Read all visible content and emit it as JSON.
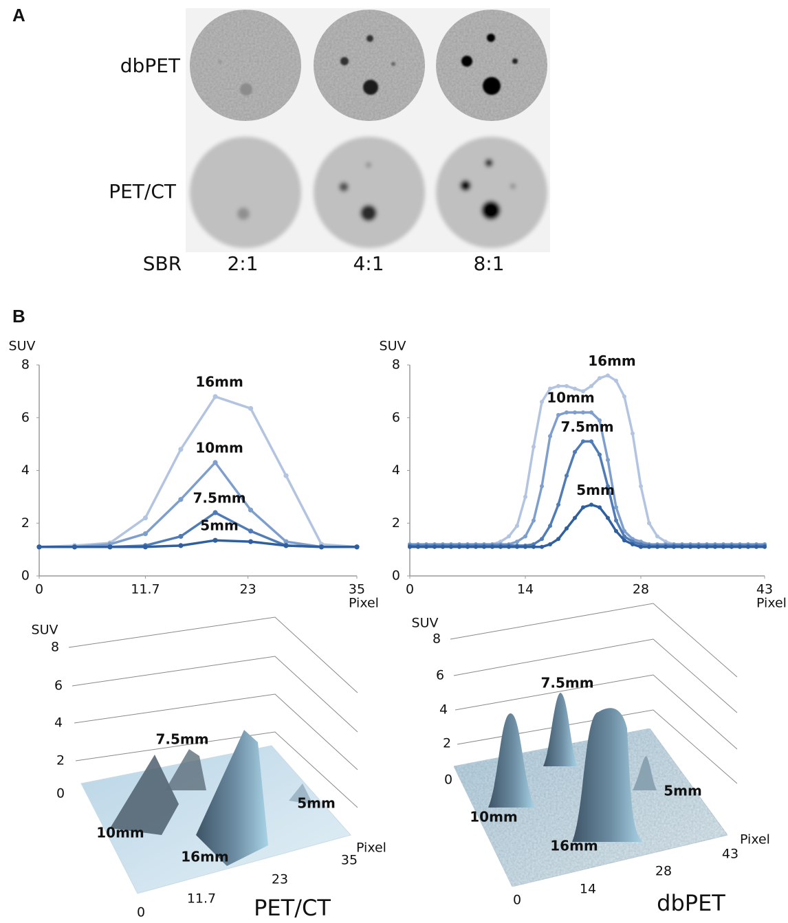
{
  "panel_a": {
    "label": "A",
    "rows": [
      "dbPET",
      "PET/CT"
    ],
    "sbr_label": "SBR",
    "sbr": [
      "2:1",
      "4:1",
      "8:1"
    ]
  },
  "panel_b": {
    "label": "B"
  },
  "chart_data": [
    {
      "type": "line",
      "y_label": "SUV",
      "x_label": "Pixel",
      "x": [
        0,
        3.9,
        7.8,
        11.7,
        15.6,
        19.4,
        23.3,
        27.2,
        31.1,
        35
      ],
      "xlim": [
        0,
        35
      ],
      "xticks": [
        0,
        11.7,
        23,
        35
      ],
      "ylim": [
        0,
        8
      ],
      "yticks": [
        0,
        2,
        4,
        6,
        8
      ],
      "series": [
        {
          "name": "16mm",
          "color": "#b3c4e1",
          "values": [
            1.1,
            1.15,
            1.25,
            2.2,
            4.8,
            6.8,
            6.35,
            3.8,
            1.2,
            1.1
          ]
        },
        {
          "name": "10mm",
          "color": "#7e9fcd",
          "values": [
            1.1,
            1.1,
            1.2,
            1.6,
            2.9,
            4.3,
            2.5,
            1.3,
            1.1,
            1.1
          ]
        },
        {
          "name": "7.5mm",
          "color": "#4f7bb7",
          "values": [
            1.1,
            1.1,
            1.1,
            1.15,
            1.5,
            2.4,
            1.7,
            1.15,
            1.1,
            1.1
          ]
        },
        {
          "name": "5mm",
          "color": "#2f5f9f",
          "values": [
            1.1,
            1.1,
            1.1,
            1.1,
            1.15,
            1.35,
            1.3,
            1.15,
            1.1,
            1.1
          ]
        }
      ]
    },
    {
      "type": "line",
      "y_label": "SUV",
      "x_label": "Pixel",
      "x": [
        0,
        1,
        2,
        3,
        4,
        5,
        6,
        7,
        8,
        9,
        10,
        11,
        12,
        13,
        14,
        15,
        16,
        17,
        18,
        19,
        20,
        21,
        22,
        23,
        24,
        25,
        26,
        27,
        28,
        29,
        30,
        31,
        32,
        33,
        34,
        35,
        36,
        37,
        38,
        39,
        40,
        41,
        42,
        43
      ],
      "xlim": [
        0,
        43
      ],
      "xticks": [
        0,
        14,
        28,
        43
      ],
      "ylim": [
        0,
        8
      ],
      "yticks": [
        0,
        2,
        4,
        6,
        8
      ],
      "series": [
        {
          "name": "16mm",
          "color": "#b3c4e1",
          "values": [
            1.2,
            1.2,
            1.2,
            1.2,
            1.2,
            1.2,
            1.2,
            1.2,
            1.2,
            1.2,
            1.2,
            1.3,
            1.5,
            1.9,
            3.0,
            4.9,
            6.6,
            7.1,
            7.2,
            7.2,
            7.1,
            7.0,
            7.2,
            7.5,
            7.6,
            7.4,
            6.8,
            5.4,
            3.4,
            2.0,
            1.5,
            1.3,
            1.2,
            1.2,
            1.2,
            1.2,
            1.2,
            1.2,
            1.2,
            1.2,
            1.2,
            1.2,
            1.2,
            1.2
          ]
        },
        {
          "name": "10mm",
          "color": "#7e9fcd",
          "values": [
            1.2,
            1.2,
            1.2,
            1.2,
            1.2,
            1.2,
            1.2,
            1.2,
            1.2,
            1.2,
            1.2,
            1.2,
            1.2,
            1.3,
            1.5,
            2.1,
            3.4,
            5.3,
            6.1,
            6.2,
            6.2,
            6.2,
            6.2,
            5.9,
            4.4,
            2.6,
            1.7,
            1.4,
            1.3,
            1.2,
            1.2,
            1.2,
            1.2,
            1.2,
            1.2,
            1.2,
            1.2,
            1.2,
            1.2,
            1.2,
            1.2,
            1.2,
            1.2,
            1.2
          ]
        },
        {
          "name": "7.5mm",
          "color": "#4f7bb7",
          "values": [
            1.15,
            1.15,
            1.15,
            1.15,
            1.15,
            1.15,
            1.15,
            1.15,
            1.15,
            1.15,
            1.15,
            1.15,
            1.15,
            1.15,
            1.15,
            1.2,
            1.4,
            1.9,
            2.7,
            3.8,
            4.7,
            5.1,
            5.1,
            4.6,
            3.4,
            2.1,
            1.5,
            1.3,
            1.2,
            1.15,
            1.15,
            1.15,
            1.15,
            1.15,
            1.15,
            1.15,
            1.15,
            1.15,
            1.15,
            1.15,
            1.15,
            1.15,
            1.15,
            1.15
          ]
        },
        {
          "name": "5mm",
          "color": "#2f5f9f",
          "values": [
            1.1,
            1.1,
            1.1,
            1.1,
            1.1,
            1.1,
            1.1,
            1.1,
            1.1,
            1.1,
            1.1,
            1.1,
            1.1,
            1.1,
            1.1,
            1.1,
            1.1,
            1.2,
            1.4,
            1.8,
            2.2,
            2.6,
            2.7,
            2.6,
            2.2,
            1.7,
            1.35,
            1.2,
            1.1,
            1.1,
            1.1,
            1.1,
            1.1,
            1.1,
            1.1,
            1.1,
            1.1,
            1.1,
            1.1,
            1.1,
            1.1,
            1.1,
            1.1,
            1.1
          ]
        }
      ]
    }
  ],
  "surface_plots": [
    {
      "z_label": "SUV",
      "z_ticks": [
        "8",
        "6",
        "4",
        "2",
        "0"
      ],
      "x_label": "Pixel",
      "x_ticks": [
        "0",
        "11.7",
        "23",
        "35"
      ],
      "peaks": [
        "7.5mm",
        "10mm",
        "16mm",
        "5mm"
      ],
      "caption": "PET/CT"
    },
    {
      "z_label": "SUV",
      "z_ticks": [
        "8",
        "6",
        "4",
        "2",
        "0"
      ],
      "x_label": "Pixel",
      "x_ticks": [
        "0",
        "14",
        "28",
        "43"
      ],
      "peaks": [
        "7.5mm",
        "10mm",
        "16mm",
        "5mm"
      ],
      "caption": "dbPET"
    }
  ]
}
